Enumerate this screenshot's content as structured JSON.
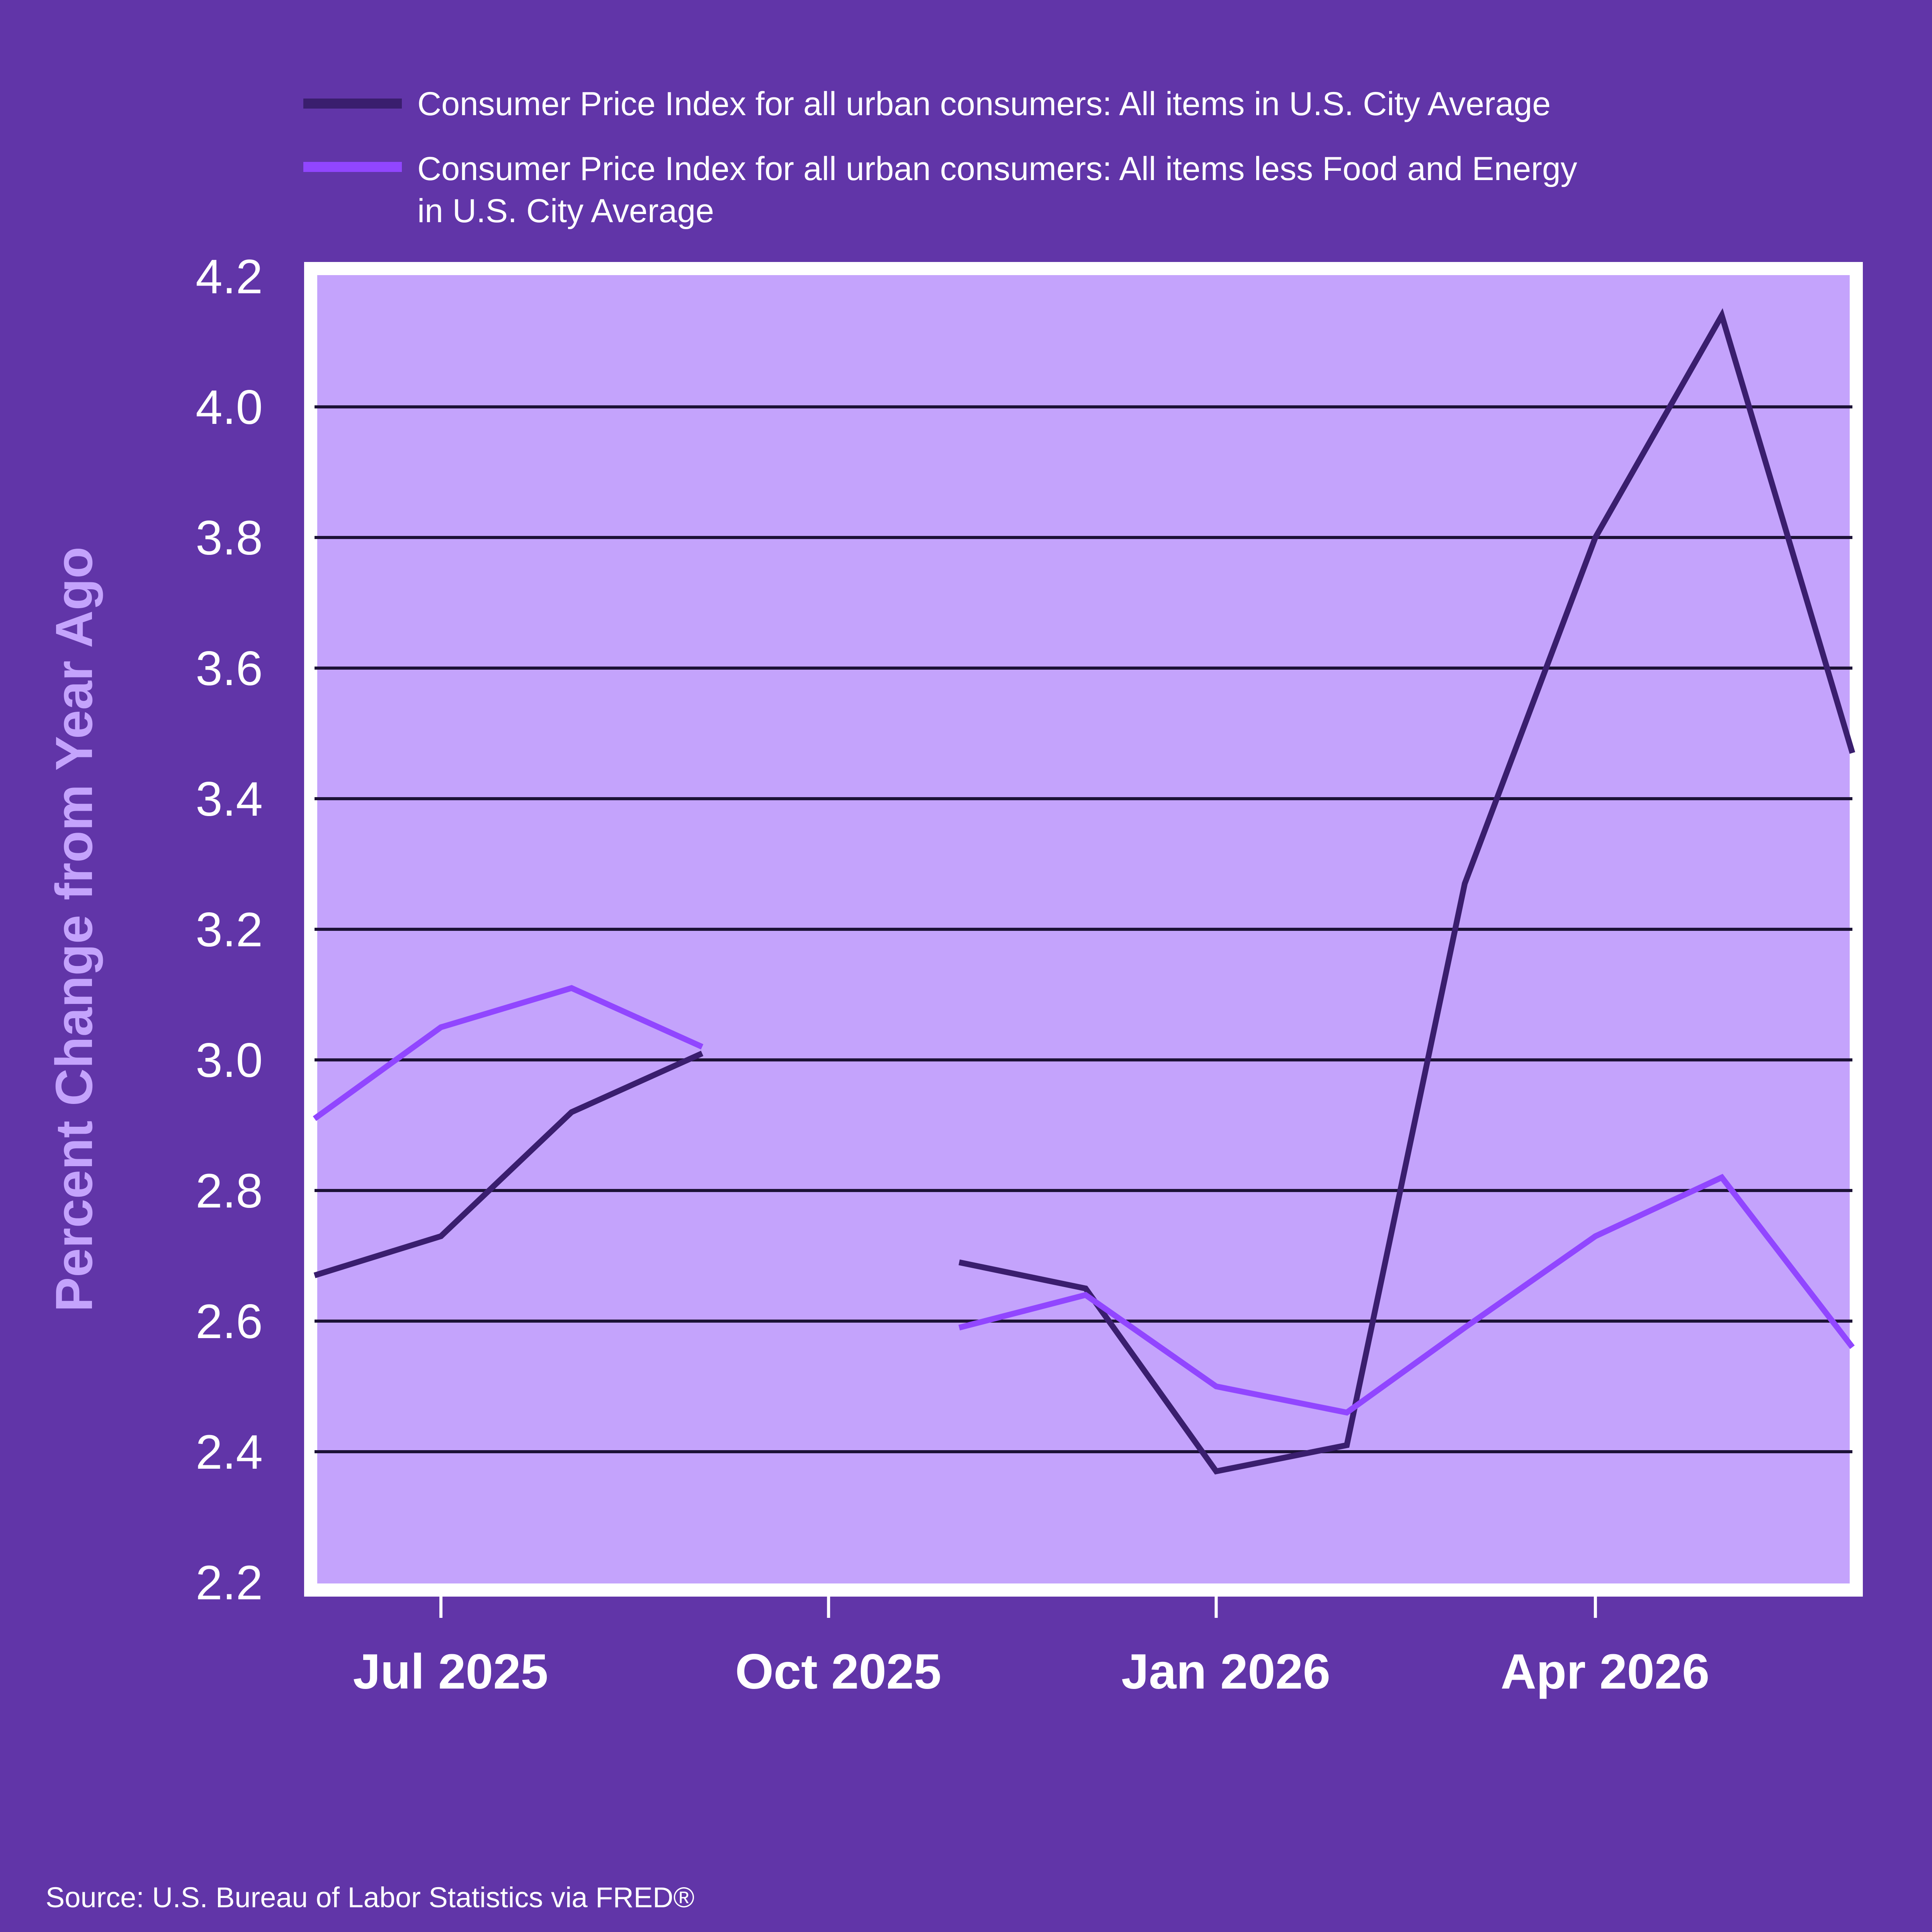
{
  "colors": {
    "page_background": "#6135a8",
    "plot_background": "#c4a3fc",
    "plot_border": "#ffffff",
    "gridline": "#1c1236",
    "series_all_items": "#3a1e6e",
    "series_core": "#9146ff",
    "axis_label": "#c4a3fc",
    "text": "#ffffff"
  },
  "chart_data": {
    "type": "line",
    "title": "",
    "xlabel": "",
    "ylabel": "Percent Change from Year Ago",
    "ylim": [
      2.2,
      4.2
    ],
    "yticks": [
      "2.2",
      "2.4",
      "2.6",
      "2.8",
      "3.0",
      "3.2",
      "3.4",
      "3.6",
      "3.8",
      "4.0",
      "4.2"
    ],
    "xlim": [
      "2025-06-01",
      "2026-06-01"
    ],
    "xticks": [
      {
        "date": "2025-07-01",
        "label": "Jul 2025"
      },
      {
        "date": "2025-10-01",
        "label": "Oct 2025"
      },
      {
        "date": "2026-01-01",
        "label": "Jan 2026"
      },
      {
        "date": "2026-04-01",
        "label": "Apr 2026"
      }
    ],
    "grid": true,
    "legend_position": "top",
    "x": [
      "2025-06-01",
      "2025-07-01",
      "2025-08-01",
      "2025-09-01",
      "2025-10-01",
      "2025-11-01",
      "2025-12-01",
      "2026-01-01",
      "2026-02-01",
      "2026-03-01",
      "2026-04-01",
      "2026-05-01",
      "2026-06-01"
    ],
    "series": [
      {
        "name": "Consumer Price Index for all urban consumers: All items in U.S. City Average",
        "values": [
          2.67,
          2.73,
          2.92,
          3.01,
          null,
          2.69,
          2.65,
          2.37,
          2.41,
          3.27,
          3.8,
          4.14,
          3.47
        ]
      },
      {
        "name": "Consumer Price Index for all urban consumers: All items less Food and Energy in U.S. City Average",
        "values": [
          2.91,
          3.05,
          3.11,
          3.02,
          null,
          2.59,
          2.64,
          2.5,
          2.46,
          2.59,
          2.73,
          2.82,
          2.56
        ]
      }
    ]
  },
  "legend": {
    "items": [
      {
        "line1": "Consumer Price Index for all urban consumers: All items in U.S. City Average",
        "line2": ""
      },
      {
        "line1": "Consumer Price Index for all urban consumers: All items less Food and Energy",
        "line2": "in U.S. City Average"
      }
    ]
  },
  "source": "Source: U.S. Bureau of Labor Statistics via FRED®"
}
